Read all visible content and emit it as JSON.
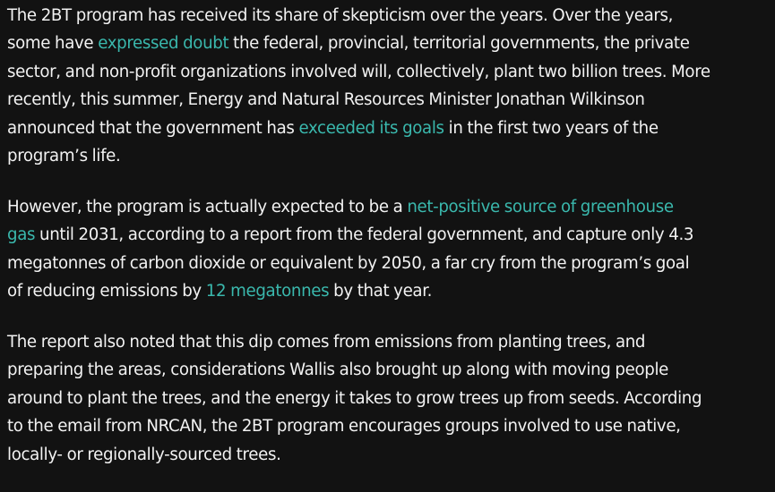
{
  "article": {
    "paragraphs": [
      {
        "lines": [
          [
            {
              "text": "The 2BT program has received its share of skepticism over the years. Over the years,"
            }
          ],
          [
            {
              "text": "some have "
            },
            {
              "text": "expressed doubt",
              "link": true
            },
            {
              "text": " the federal, provincial, territorial governments, the private"
            }
          ],
          [
            {
              "text": "sector, and non-profit organizations involved will, collectively, plant two billion trees. More"
            }
          ],
          [
            {
              "text": "recently, this summer, Energy and Natural Resources Minister Jonathan Wilkinson"
            }
          ],
          [
            {
              "text": "announced that the government has "
            },
            {
              "text": "exceeded its goals",
              "link": true
            },
            {
              "text": " in the first two years of the"
            }
          ],
          [
            {
              "text": "program’s life."
            }
          ]
        ]
      },
      {
        "lines": [
          [
            {
              "text": "However, the program is actually expected to be a "
            },
            {
              "text": "net-positive source of greenhouse",
              "link": true
            }
          ],
          [
            {
              "text": "gas",
              "link": true
            },
            {
              "text": " until 2031, according to a report from the federal government, and capture only 4.3"
            }
          ],
          [
            {
              "text": "megatonnes of carbon dioxide or equivalent by 2050, a far cry from the program’s goal"
            }
          ],
          [
            {
              "text": "of reducing emissions by "
            },
            {
              "text": "12 megatonnes",
              "link": true
            },
            {
              "text": " by that year."
            }
          ]
        ]
      },
      {
        "lines": [
          [
            {
              "text": "The report also noted that this dip comes from emissions from planting trees, and"
            }
          ],
          [
            {
              "text": "preparing the areas, considerations Wallis also brought up along with moving people"
            }
          ],
          [
            {
              "text": "around to plant the trees, and the energy it takes to grow trees up from seeds. According"
            }
          ],
          [
            {
              "text": "to the email from NRCAN, the 2BT program encourages groups involved to use native,"
            }
          ],
          [
            {
              "text": "locally- or regionally-sourced trees."
            }
          ]
        ]
      }
    ]
  },
  "colors": {
    "background": "#121212",
    "text": "#f2f2f2",
    "link": "#3ab8ad"
  }
}
